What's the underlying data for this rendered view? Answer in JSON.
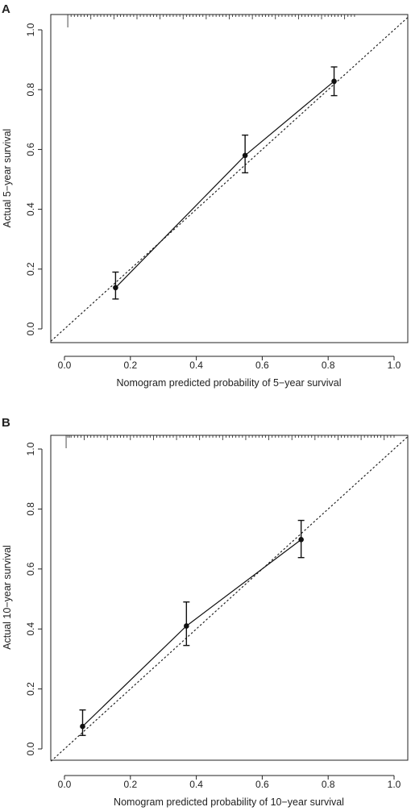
{
  "chart_data": [
    {
      "panel_label": "A",
      "type": "line",
      "xlabel": "Nomogram predicted probability of 5−year survival",
      "ylabel": "Actual 5−year survival",
      "xlim": [
        0.0,
        1.0
      ],
      "ylim": [
        0.0,
        1.0
      ],
      "x_ticks": [
        "0.0",
        "0.2",
        "0.4",
        "0.6",
        "0.8",
        "1.0"
      ],
      "y_ticks": [
        "0.0",
        "0.2",
        "0.4",
        "0.6",
        "0.8",
        "1.0"
      ],
      "grid": false,
      "reference_line": {
        "style": "dotted",
        "from": [
          0,
          0
        ],
        "to": [
          1,
          1
        ]
      },
      "series": [
        {
          "points": [
            {
              "x": 0.155,
              "y": 0.138,
              "lower": 0.1,
              "upper": 0.19
            },
            {
              "x": 0.548,
              "y": 0.58,
              "lower": 0.522,
              "upper": 0.648
            },
            {
              "x": 0.818,
              "y": 0.828,
              "lower": 0.78,
              "upper": 0.876
            }
          ]
        }
      ],
      "rug": [
        0.01,
        0.02,
        0.03,
        0.04,
        0.05,
        0.06,
        0.07,
        0.08,
        0.09,
        0.1,
        0.11,
        0.12,
        0.13,
        0.14,
        0.15,
        0.16,
        0.17,
        0.18,
        0.19,
        0.2,
        0.21,
        0.22,
        0.23,
        0.24,
        0.25,
        0.26,
        0.27,
        0.28,
        0.29,
        0.3,
        0.31,
        0.32,
        0.33,
        0.34,
        0.35,
        0.36,
        0.37,
        0.38,
        0.39,
        0.4,
        0.41,
        0.42,
        0.43,
        0.44,
        0.45,
        0.46,
        0.47,
        0.48,
        0.49,
        0.5,
        0.51,
        0.52,
        0.53,
        0.54,
        0.55,
        0.56,
        0.57,
        0.58,
        0.59,
        0.6,
        0.61,
        0.62,
        0.63,
        0.64,
        0.65,
        0.66,
        0.67,
        0.68,
        0.69,
        0.7,
        0.71,
        0.72,
        0.73,
        0.74,
        0.75,
        0.76,
        0.77,
        0.78,
        0.79,
        0.8,
        0.81,
        0.82,
        0.83,
        0.84,
        0.85,
        0.86,
        0.87,
        0.88
      ]
    },
    {
      "panel_label": "B",
      "type": "line",
      "xlabel": "Nomogram predicted probability of 10−year survival",
      "ylabel": "Actual 10−year survival",
      "xlim": [
        0.0,
        1.0
      ],
      "ylim": [
        0.0,
        1.0
      ],
      "x_ticks": [
        "0.0",
        "0.2",
        "0.4",
        "0.6",
        "0.8",
        "1.0"
      ],
      "y_ticks": [
        "0.0",
        "0.2",
        "0.4",
        "0.6",
        "0.8",
        "1.0"
      ],
      "grid": false,
      "reference_line": {
        "style": "dotted",
        "from": [
          0,
          0
        ],
        "to": [
          1,
          1
        ]
      },
      "series": [
        {
          "points": [
            {
              "x": 0.055,
              "y": 0.075,
              "lower": 0.045,
              "upper": 0.13
            },
            {
              "x": 0.37,
              "y": 0.41,
              "lower": 0.345,
              "upper": 0.49
            },
            {
              "x": 0.718,
              "y": 0.698,
              "lower": 0.638,
              "upper": 0.762
            }
          ]
        }
      ],
      "rug": [
        0.005,
        0.01,
        0.015,
        0.02,
        0.03,
        0.04,
        0.05,
        0.06,
        0.07,
        0.08,
        0.09,
        0.1,
        0.11,
        0.12,
        0.13,
        0.14,
        0.15,
        0.16,
        0.17,
        0.18,
        0.19,
        0.2,
        0.21,
        0.22,
        0.23,
        0.24,
        0.25,
        0.26,
        0.27,
        0.28,
        0.29,
        0.3,
        0.31,
        0.32,
        0.33,
        0.34,
        0.35,
        0.36,
        0.37,
        0.38,
        0.39,
        0.4,
        0.41,
        0.42,
        0.43,
        0.44,
        0.45,
        0.46,
        0.47,
        0.48,
        0.49,
        0.5,
        0.51,
        0.52,
        0.53,
        0.54,
        0.55,
        0.56,
        0.57,
        0.58,
        0.59,
        0.6,
        0.61,
        0.62,
        0.63,
        0.64,
        0.65,
        0.66,
        0.67,
        0.68,
        0.69,
        0.7,
        0.71,
        0.72,
        0.73,
        0.74,
        0.75,
        0.76,
        0.77,
        0.78,
        0.79,
        0.8,
        0.81,
        0.82,
        0.83,
        0.84,
        0.85,
        0.86,
        0.87,
        0.88,
        0.89,
        0.9,
        0.91,
        0.92,
        0.93,
        0.94,
        0.95,
        0.96,
        0.97,
        0.98,
        0.99,
        1.0
      ]
    }
  ]
}
